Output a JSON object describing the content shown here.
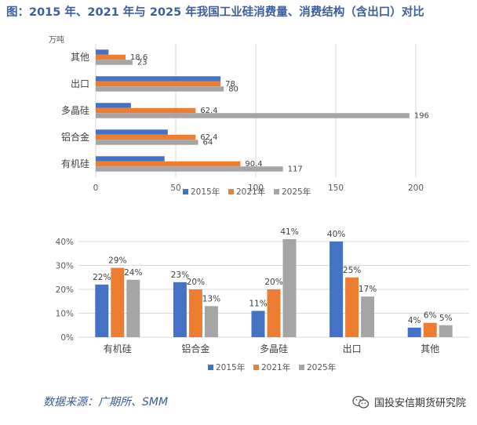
{
  "title": "图：2015 年、2021 年与 2025 年我国工业硅消费量、消费结构（含出口）对比",
  "source": "数据来源：广期所、SMM",
  "watermark": "国投安信期货研究院",
  "watermark_icon": "wechat-icon",
  "colors": {
    "s2015": "#4472c4",
    "s2021": "#ed7d31",
    "s2025": "#a5a5a5"
  },
  "chart_data": [
    {
      "type": "bar",
      "orientation": "horizontal",
      "unit_label": "万吨",
      "categories": [
        "其他",
        "出口",
        "多晶硅",
        "铝合金",
        "有机硅"
      ],
      "xlim": [
        0,
        200
      ],
      "xticks": [
        0,
        50,
        100,
        150,
        200
      ],
      "grid": true,
      "legend_position": "bottom",
      "series": [
        {
          "name": "2015年",
          "values": [
            8,
            78,
            22,
            45,
            43
          ],
          "labels": [
            "",
            "",
            "",
            "",
            ""
          ]
        },
        {
          "name": "2021年",
          "values": [
            18.6,
            78,
            62.4,
            62.4,
            90.4
          ],
          "labels": [
            "18.6",
            "78",
            "62.4",
            "62.4",
            "90.4"
          ]
        },
        {
          "name": "2025年",
          "values": [
            23,
            80,
            196,
            64,
            117
          ],
          "labels": [
            "23",
            "80",
            "196",
            "64",
            "117"
          ]
        }
      ]
    },
    {
      "type": "bar",
      "orientation": "vertical",
      "categories": [
        "有机硅",
        "铝合金",
        "多晶硅",
        "出口",
        "其他"
      ],
      "ylim": [
        0,
        40
      ],
      "yticks": [
        "0%",
        "10%",
        "20%",
        "30%",
        "40%"
      ],
      "grid": true,
      "legend_position": "bottom",
      "series": [
        {
          "name": "2015年",
          "values": [
            22,
            23,
            11,
            40,
            4
          ],
          "labels": [
            "22%",
            "23%",
            "11%",
            "40%",
            "4%"
          ]
        },
        {
          "name": "2021年",
          "values": [
            29,
            20,
            20,
            25,
            6
          ],
          "labels": [
            "29%",
            "20%",
            "20%",
            "25%",
            "6%"
          ]
        },
        {
          "name": "2025年",
          "values": [
            24,
            13,
            41,
            17,
            5
          ],
          "labels": [
            "24%",
            "13%",
            "41%",
            "17%",
            "5%"
          ]
        }
      ]
    }
  ]
}
